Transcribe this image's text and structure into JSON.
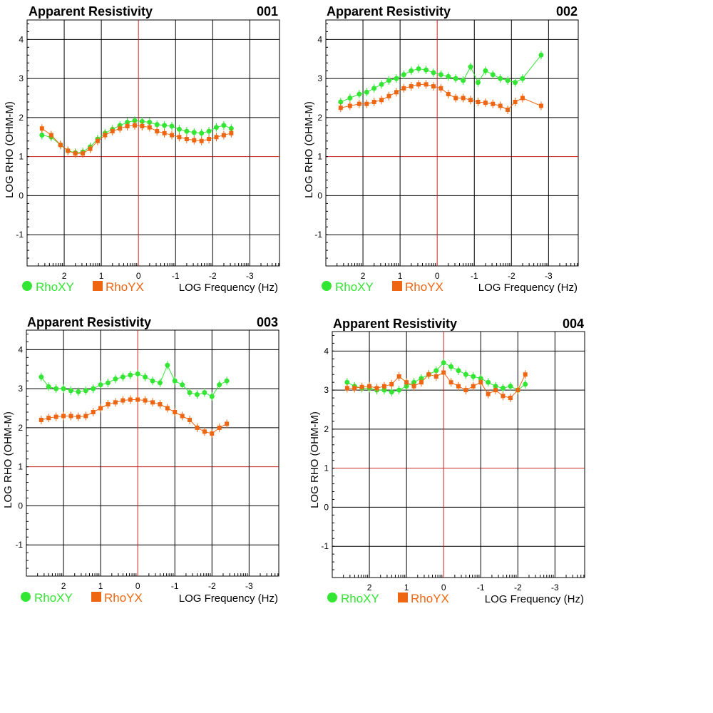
{
  "colors": {
    "rhoxy": "#33e633",
    "rhoyx": "#ee6611",
    "grid": "#000000",
    "refline": "#cc2222"
  },
  "chart_data": [
    {
      "type": "scatter",
      "title": "Apparent Resistivity",
      "id_label": "001",
      "xlabel": "LOG Frequency (Hz)",
      "ylabel": "LOG RHO (OHM-M)",
      "x_reversed": true,
      "xlim": [
        3.0,
        -3.8
      ],
      "ylim": [
        -1.8,
        4.5
      ],
      "x_ticks": [
        "2",
        "1",
        "0",
        "-1",
        "-2",
        "-3"
      ],
      "y_ticks": [
        "4",
        "3",
        "2",
        "1",
        "0",
        "-1"
      ],
      "legend": [
        "RhoXY",
        "RhoYX"
      ],
      "series": [
        {
          "name": "RhoXY",
          "marker": "circle",
          "x": [
            2.6,
            2.35,
            2.1,
            1.9,
            1.7,
            1.5,
            1.3,
            1.1,
            0.9,
            0.7,
            0.5,
            0.3,
            0.1,
            -0.1,
            -0.3,
            -0.5,
            -0.7,
            -0.9,
            -1.1,
            -1.3,
            -1.5,
            -1.7,
            -1.9,
            -2.1,
            -2.3,
            -2.5
          ],
          "y": [
            1.55,
            1.5,
            1.3,
            1.15,
            1.1,
            1.12,
            1.25,
            1.45,
            1.6,
            1.7,
            1.8,
            1.88,
            1.92,
            1.9,
            1.88,
            1.82,
            1.8,
            1.78,
            1.7,
            1.65,
            1.62,
            1.6,
            1.65,
            1.75,
            1.8,
            1.72
          ]
        },
        {
          "name": "RhoYX",
          "marker": "square",
          "x": [
            2.6,
            2.35,
            2.1,
            1.9,
            1.7,
            1.5,
            1.3,
            1.1,
            0.9,
            0.7,
            0.5,
            0.3,
            0.1,
            -0.1,
            -0.3,
            -0.5,
            -0.7,
            -0.9,
            -1.1,
            -1.3,
            -1.5,
            -1.7,
            -1.9,
            -2.1,
            -2.3,
            -2.5
          ],
          "y": [
            1.72,
            1.55,
            1.3,
            1.15,
            1.08,
            1.08,
            1.2,
            1.4,
            1.55,
            1.65,
            1.72,
            1.78,
            1.8,
            1.78,
            1.75,
            1.65,
            1.6,
            1.55,
            1.5,
            1.45,
            1.42,
            1.4,
            1.45,
            1.5,
            1.55,
            1.6
          ]
        }
      ]
    },
    {
      "type": "scatter",
      "title": "Apparent Resistivity",
      "id_label": "002",
      "xlabel": "LOG Frequency (Hz)",
      "ylabel": "LOG RHO (OHM-M)",
      "x_reversed": true,
      "xlim": [
        3.0,
        -3.8
      ],
      "ylim": [
        -1.8,
        4.5
      ],
      "x_ticks": [
        "2",
        "1",
        "0",
        "-1",
        "-2",
        "-3"
      ],
      "y_ticks": [
        "4",
        "3",
        "2",
        "1",
        "0",
        "-1"
      ],
      "legend": [
        "RhoXY",
        "RhoYX"
      ],
      "series": [
        {
          "name": "RhoXY",
          "marker": "circle",
          "x": [
            2.6,
            2.35,
            2.1,
            1.9,
            1.7,
            1.5,
            1.3,
            1.1,
            0.9,
            0.7,
            0.5,
            0.3,
            0.1,
            -0.1,
            -0.3,
            -0.5,
            -0.7,
            -0.9,
            -1.1,
            -1.3,
            -1.5,
            -1.7,
            -1.9,
            -2.1,
            -2.3,
            -2.8
          ],
          "y": [
            2.4,
            2.5,
            2.6,
            2.65,
            2.75,
            2.85,
            2.95,
            3.0,
            3.1,
            3.2,
            3.25,
            3.22,
            3.15,
            3.1,
            3.05,
            3.0,
            2.95,
            3.3,
            2.9,
            3.2,
            3.1,
            3.0,
            2.95,
            2.9,
            3.0,
            3.6
          ]
        },
        {
          "name": "RhoYX",
          "marker": "square",
          "x": [
            2.6,
            2.35,
            2.1,
            1.9,
            1.7,
            1.5,
            1.3,
            1.1,
            0.9,
            0.7,
            0.5,
            0.3,
            0.1,
            -0.1,
            -0.3,
            -0.5,
            -0.7,
            -0.9,
            -1.1,
            -1.3,
            -1.5,
            -1.7,
            -1.9,
            -2.1,
            -2.3,
            -2.8
          ],
          "y": [
            2.25,
            2.3,
            2.35,
            2.35,
            2.4,
            2.45,
            2.55,
            2.65,
            2.75,
            2.8,
            2.85,
            2.85,
            2.8,
            2.75,
            2.6,
            2.5,
            2.5,
            2.45,
            2.4,
            2.38,
            2.35,
            2.3,
            2.2,
            2.4,
            2.5,
            2.3
          ]
        }
      ]
    },
    {
      "type": "scatter",
      "title": "Apparent Resistivity",
      "id_label": "003",
      "xlabel": "LOG Frequency (Hz)",
      "ylabel": "LOG RHO (OHM-M)",
      "x_reversed": true,
      "xlim": [
        3.0,
        -3.8
      ],
      "ylim": [
        -1.8,
        4.5
      ],
      "x_ticks": [
        "2",
        "1",
        "0",
        "-1",
        "-2",
        "-3"
      ],
      "y_ticks": [
        "4",
        "3",
        "2",
        "1",
        "0",
        "-1"
      ],
      "legend": [
        "RhoXY",
        "RhoYX"
      ],
      "series": [
        {
          "name": "RhoXY",
          "marker": "circle",
          "x": [
            2.6,
            2.4,
            2.2,
            2.0,
            1.8,
            1.6,
            1.4,
            1.2,
            1.0,
            0.8,
            0.6,
            0.4,
            0.2,
            0.0,
            -0.2,
            -0.4,
            -0.6,
            -0.8,
            -1.0,
            -1.2,
            -1.4,
            -1.6,
            -1.8,
            -2.0,
            -2.2,
            -2.4
          ],
          "y": [
            3.3,
            3.05,
            3.0,
            3.0,
            2.95,
            2.92,
            2.95,
            3.0,
            3.1,
            3.15,
            3.25,
            3.3,
            3.35,
            3.38,
            3.3,
            3.2,
            3.15,
            3.6,
            3.2,
            3.1,
            2.9,
            2.85,
            2.9,
            2.8,
            3.1,
            3.2
          ]
        },
        {
          "name": "RhoYX",
          "marker": "square",
          "x": [
            2.6,
            2.4,
            2.2,
            2.0,
            1.8,
            1.6,
            1.4,
            1.2,
            1.0,
            0.8,
            0.6,
            0.4,
            0.2,
            0.0,
            -0.2,
            -0.4,
            -0.6,
            -0.8,
            -1.0,
            -1.2,
            -1.4,
            -1.6,
            -1.8,
            -2.0,
            -2.2,
            -2.4
          ],
          "y": [
            2.2,
            2.25,
            2.28,
            2.3,
            2.3,
            2.28,
            2.3,
            2.4,
            2.5,
            2.6,
            2.65,
            2.7,
            2.72,
            2.72,
            2.7,
            2.65,
            2.6,
            2.5,
            2.4,
            2.3,
            2.2,
            2.0,
            1.9,
            1.85,
            2.0,
            2.1
          ]
        }
      ]
    },
    {
      "type": "scatter",
      "title": "Apparent Resistivity",
      "id_label": "004",
      "xlabel": "LOG Frequency (Hz)",
      "ylabel": "LOG RHO (OHM-M)",
      "x_reversed": true,
      "xlim": [
        3.0,
        -3.8
      ],
      "ylim": [
        -1.8,
        4.5
      ],
      "x_ticks": [
        "2",
        "1",
        "0",
        "-1",
        "-2",
        "-3"
      ],
      "y_ticks": [
        "4",
        "3",
        "2",
        "1",
        "0",
        "-1"
      ],
      "legend": [
        "RhoXY",
        "RhoYX"
      ],
      "series": [
        {
          "name": "RhoXY",
          "marker": "circle",
          "x": [
            2.6,
            2.4,
            2.2,
            2.0,
            1.8,
            1.6,
            1.4,
            1.2,
            1.0,
            0.8,
            0.6,
            0.4,
            0.2,
            0.0,
            -0.2,
            -0.4,
            -0.6,
            -0.8,
            -1.0,
            -1.2,
            -1.4,
            -1.6,
            -1.8,
            -2.0,
            -2.2
          ],
          "y": [
            3.2,
            3.1,
            3.05,
            3.05,
            3.0,
            3.0,
            2.95,
            3.0,
            3.1,
            3.2,
            3.3,
            3.4,
            3.5,
            3.7,
            3.6,
            3.5,
            3.4,
            3.35,
            3.3,
            3.2,
            3.1,
            3.05,
            3.1,
            3.0,
            3.15
          ]
        },
        {
          "name": "RhoYX",
          "marker": "square",
          "x": [
            2.6,
            2.4,
            2.2,
            2.0,
            1.8,
            1.6,
            1.4,
            1.2,
            1.0,
            0.8,
            0.6,
            0.4,
            0.2,
            0.0,
            -0.2,
            -0.4,
            -0.6,
            -0.8,
            -1.0,
            -1.2,
            -1.4,
            -1.6,
            -1.8,
            -2.0,
            -2.2
          ],
          "y": [
            3.05,
            3.05,
            3.08,
            3.1,
            3.05,
            3.1,
            3.15,
            3.35,
            3.2,
            3.1,
            3.2,
            3.4,
            3.35,
            3.45,
            3.2,
            3.1,
            3.0,
            3.1,
            3.2,
            2.9,
            3.0,
            2.85,
            2.8,
            3.0,
            3.4
          ]
        }
      ]
    }
  ]
}
